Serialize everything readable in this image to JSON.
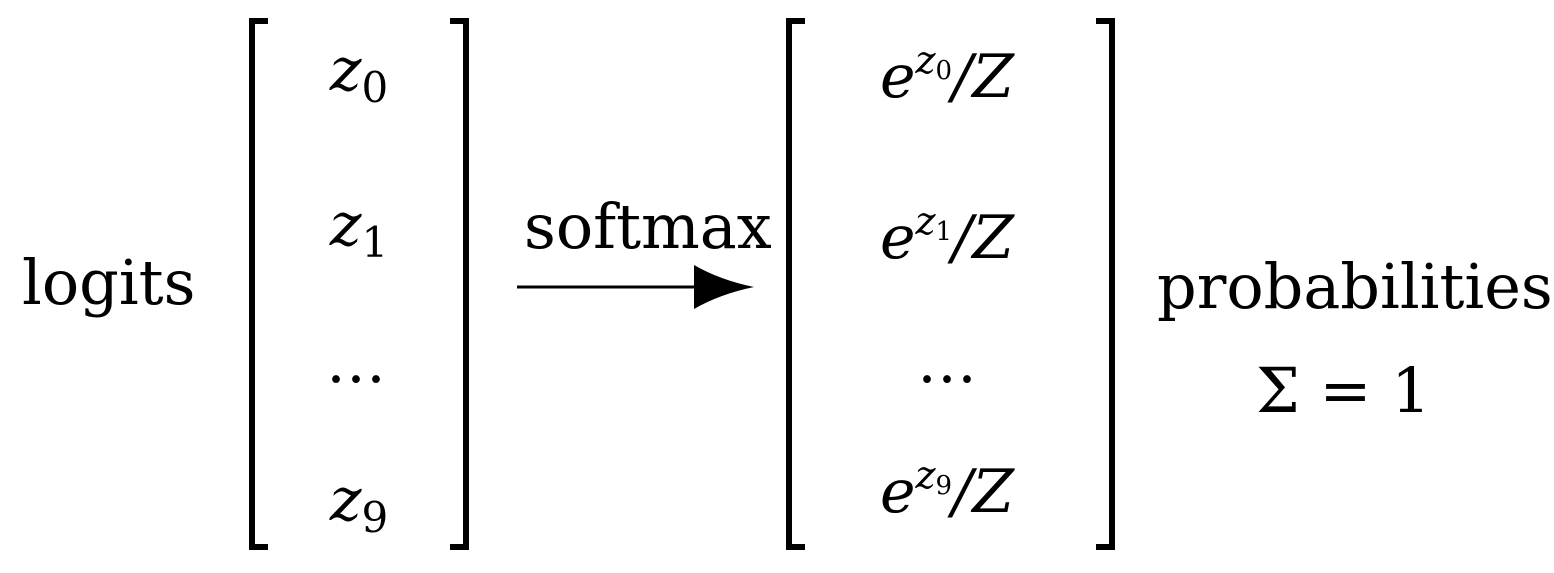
{
  "left_label": "logits",
  "operation_label": "softmax",
  "right_label": "probabilities",
  "sum_label": "Σ = 1",
  "logits": [
    {
      "base": "z",
      "sub": "0"
    },
    {
      "base": "z",
      "sub": "1"
    },
    {
      "base": "…",
      "sub": ""
    },
    {
      "base": "z",
      "sub": "9"
    }
  ],
  "probabilities": [
    {
      "base": "e",
      "sup_base": "z",
      "sup_sub": "0",
      "suffix": "/Z"
    },
    {
      "base": "e",
      "sup_base": "z",
      "sup_sub": "1",
      "suffix": "/Z"
    },
    {
      "dots": "…"
    },
    {
      "base": "e",
      "sup_base": "z",
      "sup_sub": "9",
      "suffix": "/Z"
    }
  ]
}
